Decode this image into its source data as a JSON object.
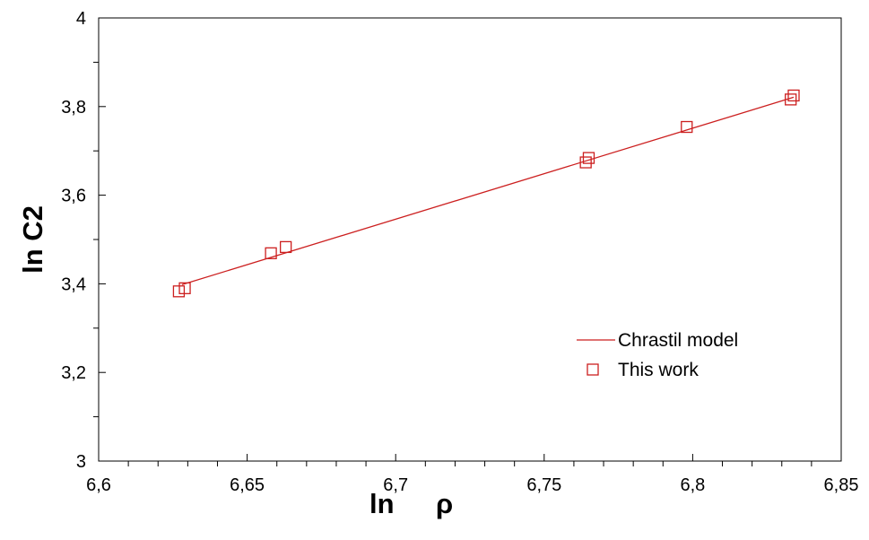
{
  "chart_data": {
    "type": "scatter",
    "title": "",
    "xlabel": "ln",
    "xlabel_symbol": "ρ",
    "ylabel": "ln C2",
    "xlim": [
      6.6,
      6.85
    ],
    "ylim": [
      3.0,
      4.0
    ],
    "xticks": [
      6.6,
      6.65,
      6.7,
      6.75,
      6.8,
      6.85
    ],
    "xtick_labels": [
      "6,6",
      "6,65",
      "6,7",
      "6,75",
      "6,8",
      "6,85"
    ],
    "yticks": [
      3.0,
      3.2,
      3.4,
      3.6,
      3.8,
      4.0
    ],
    "ytick_labels": [
      "3",
      "3,2",
      "3,4",
      "3,6",
      "3,8",
      "4"
    ],
    "grid": false,
    "legend_position": "lower-right",
    "color": "#cc1f1f",
    "series": [
      {
        "name": "Chrastil model",
        "kind": "line",
        "x": [
          6.628,
          6.834
        ],
        "y": [
          3.398,
          3.821
        ]
      },
      {
        "name": "This work",
        "kind": "scatter",
        "marker": "open-square",
        "x": [
          6.627,
          6.629,
          6.658,
          6.663,
          6.764,
          6.765,
          6.798,
          6.833,
          6.834
        ],
        "y": [
          3.383,
          3.39,
          3.469,
          3.483,
          3.674,
          3.684,
          3.754,
          3.816,
          3.825
        ]
      }
    ]
  }
}
